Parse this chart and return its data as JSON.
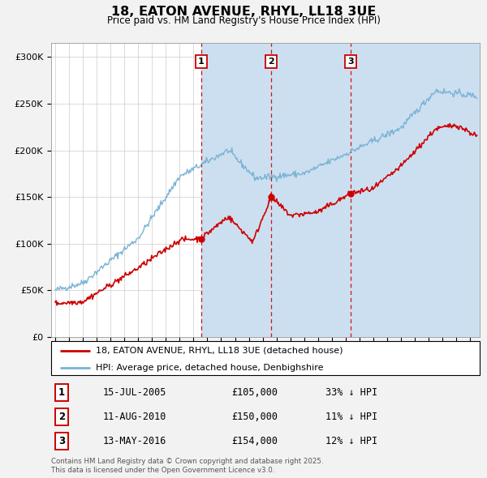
{
  "title": "18, EATON AVENUE, RHYL, LL18 3UE",
  "subtitle": "Price paid vs. HM Land Registry's House Price Index (HPI)",
  "hpi_color": "#7ab3d4",
  "sale_color": "#cc0000",
  "sale_dates_num": [
    2005.54,
    2010.61,
    2016.37
  ],
  "sale_prices": [
    105000,
    150000,
    154000
  ],
  "sale_labels": [
    "1",
    "2",
    "3"
  ],
  "sale_info": [
    {
      "num": "1",
      "date": "15-JUL-2005",
      "price": "£105,000",
      "pct": "33% ↓ HPI"
    },
    {
      "num": "2",
      "date": "11-AUG-2010",
      "price": "£150,000",
      "pct": "11% ↓ HPI"
    },
    {
      "num": "3",
      "date": "13-MAY-2016",
      "price": "£154,000",
      "pct": "12% ↓ HPI"
    }
  ],
  "legend_entries": [
    "18, EATON AVENUE, RHYL, LL18 3UE (detached house)",
    "HPI: Average price, detached house, Denbighshire"
  ],
  "footer": "Contains HM Land Registry data © Crown copyright and database right 2025.\nThis data is licensed under the Open Government Licence v3.0.",
  "yticks": [
    0,
    50000,
    100000,
    150000,
    200000,
    250000,
    300000
  ],
  "ytick_labels": [
    "£0",
    "£50K",
    "£100K",
    "£150K",
    "£200K",
    "£250K",
    "£300K"
  ],
  "ylim": [
    0,
    315000
  ],
  "xlim_start": 1994.7,
  "xlim_end": 2025.7,
  "bg_color": "#ffffff",
  "fig_bg": "#f2f2f2",
  "span_color": "#ccdff0",
  "grid_color": "#cccccc"
}
